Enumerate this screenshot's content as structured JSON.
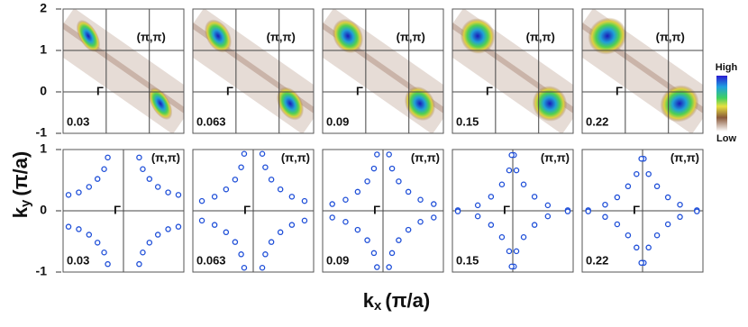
{
  "chart_data": [
    {
      "type": "map",
      "xlim": [
        -1,
        1.8
      ],
      "ylim": [
        -1,
        2
      ],
      "yticks": [
        2,
        1,
        0,
        -1
      ],
      "guides": [
        0,
        1
      ],
      "gamma_label": "Γ",
      "corner_label": "(π,π)",
      "panels": [
        {
          "label": "0.03"
        },
        {
          "label": "0.063"
        },
        {
          "label": "0.09"
        },
        {
          "label": "0.15"
        },
        {
          "label": "0.22"
        }
      ],
      "colorbar": {
        "high": "High",
        "low": "Low"
      }
    },
    {
      "type": "scatter",
      "xlim": [
        -1,
        1
      ],
      "ylim": [
        -1,
        1
      ],
      "yticks": [
        1,
        0,
        -1
      ],
      "guides": [
        0
      ],
      "color": "#1f4fd8",
      "gamma_label": "Γ",
      "corner_label": "(π,π)",
      "panels": [
        {
          "label": "0.03",
          "x": [
            0.26,
            0.32,
            0.43,
            0.57,
            0.74,
            0.91,
            -0.26,
            -0.32,
            -0.43,
            -0.57,
            -0.74,
            -0.91,
            0.26,
            0.32,
            0.43,
            0.57,
            0.74,
            0.91,
            -0.26,
            -0.32,
            -0.43,
            -0.57,
            -0.74,
            -0.91
          ],
          "y": [
            0.87,
            0.68,
            0.52,
            0.39,
            0.3,
            0.26,
            0.87,
            0.68,
            0.52,
            0.39,
            0.3,
            0.26,
            -0.87,
            -0.68,
            -0.52,
            -0.39,
            -0.3,
            -0.26,
            -0.87,
            -0.68,
            -0.52,
            -0.39,
            -0.3,
            -0.26
          ]
        },
        {
          "label": "0.063",
          "x": [
            0.15,
            0.2,
            0.3,
            0.45,
            0.64,
            0.85,
            -0.15,
            -0.2,
            -0.3,
            -0.45,
            -0.64,
            -0.85,
            0.15,
            0.2,
            0.3,
            0.45,
            0.64,
            0.85,
            -0.15,
            -0.2,
            -0.3,
            -0.45,
            -0.64,
            -0.85
          ],
          "y": [
            0.93,
            0.71,
            0.51,
            0.35,
            0.23,
            0.16,
            0.93,
            0.71,
            0.51,
            0.35,
            0.23,
            0.16,
            -0.93,
            -0.71,
            -0.51,
            -0.35,
            -0.23,
            -0.16,
            -0.93,
            -0.71,
            -0.51,
            -0.35,
            -0.23,
            -0.16
          ]
        },
        {
          "label": "0.09",
          "x": [
            0.1,
            0.15,
            0.26,
            0.42,
            0.62,
            0.84,
            -0.1,
            -0.15,
            -0.26,
            -0.42,
            -0.62,
            -0.84,
            0.1,
            0.15,
            0.26,
            0.42,
            0.62,
            0.84,
            -0.1,
            -0.15,
            -0.26,
            -0.42,
            -0.62,
            -0.84
          ],
          "y": [
            0.92,
            0.69,
            0.48,
            0.31,
            0.18,
            0.11,
            0.92,
            0.69,
            0.48,
            0.31,
            0.18,
            0.11,
            -0.92,
            -0.69,
            -0.48,
            -0.31,
            -0.18,
            -0.11,
            -0.92,
            -0.69,
            -0.48,
            -0.31,
            -0.18,
            -0.11
          ]
        },
        {
          "label": "0.15",
          "x": [
            0.02,
            0.06,
            0.18,
            0.36,
            0.58,
            0.91,
            -0.02,
            -0.06,
            -0.18,
            -0.36,
            -0.58,
            -0.91,
            0.02,
            0.06,
            0.18,
            0.36,
            0.58,
            0.91,
            -0.02,
            -0.06,
            -0.18,
            -0.36,
            -0.58,
            -0.91
          ],
          "y": [
            0.91,
            0.66,
            0.43,
            0.23,
            0.09,
            0.01,
            0.91,
            0.66,
            0.43,
            0.23,
            0.09,
            0.01,
            -0.91,
            -0.66,
            -0.43,
            -0.23,
            -0.09,
            -0.01,
            -0.91,
            -0.66,
            -0.43,
            -0.23,
            -0.09,
            -0.01
          ]
        },
        {
          "label": "0.22",
          "x": [
            0.02,
            0.1,
            0.24,
            0.42,
            0.62,
            0.9,
            -0.02,
            -0.1,
            -0.24,
            -0.42,
            -0.62,
            -0.9,
            0.02,
            0.1,
            0.24,
            0.42,
            0.62,
            0.9,
            -0.02,
            -0.1,
            -0.24,
            -0.42,
            -0.62,
            -0.9
          ],
          "y": [
            0.85,
            0.6,
            0.4,
            0.22,
            0.1,
            0.01,
            0.85,
            0.6,
            0.4,
            0.22,
            0.1,
            0.01,
            -0.85,
            -0.6,
            -0.4,
            -0.22,
            -0.1,
            -0.01,
            -0.85,
            -0.6,
            -0.4,
            -0.22,
            -0.1,
            -0.01
          ]
        }
      ]
    }
  ],
  "ylabel": {
    "base": "k",
    "sub": "y",
    "unit": "(π/a)"
  },
  "xlabel": {
    "base": "k",
    "sub": "x",
    "unit": "(π/a)"
  }
}
